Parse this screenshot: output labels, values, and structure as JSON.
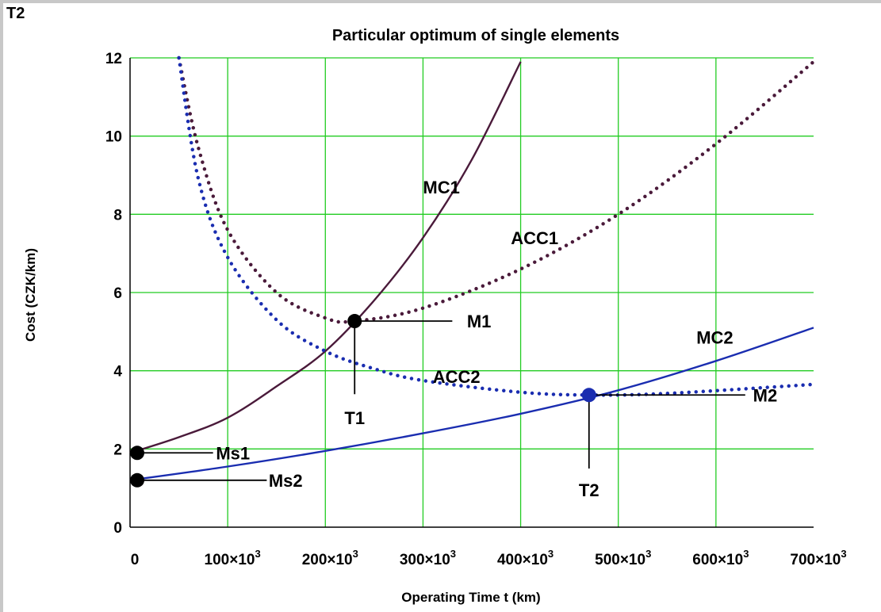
{
  "figure_tag": "T2",
  "chart_data": {
    "type": "line",
    "title": "Particular optimum of single elements",
    "xlabel": "Operating Time  t (km)",
    "ylabel": "Cost (CZK/km)",
    "xlim": [
      0,
      700000
    ],
    "ylim": [
      0,
      12
    ],
    "grid": true,
    "x_ticks": [
      {
        "value": 0,
        "base": "0",
        "exp": ""
      },
      {
        "value": 100000,
        "base": "100×10",
        "exp": "3"
      },
      {
        "value": 200000,
        "base": "200×10",
        "exp": "3"
      },
      {
        "value": 300000,
        "base": "300×10",
        "exp": "3"
      },
      {
        "value": 400000,
        "base": "400×10",
        "exp": "3"
      },
      {
        "value": 500000,
        "base": "500×10",
        "exp": "3"
      },
      {
        "value": 600000,
        "base": "600×10",
        "exp": "3"
      },
      {
        "value": 700000,
        "base": "700×10",
        "exp": "3"
      }
    ],
    "y_ticks": [
      0,
      2,
      4,
      6,
      8,
      10,
      12
    ],
    "series": [
      {
        "name": "MC1",
        "style": "solid",
        "color": "#4a1a3a",
        "x": [
          0,
          50000,
          100000,
          150000,
          200000,
          250000,
          300000,
          350000,
          400000
        ],
        "y": [
          1.9,
          2.3,
          2.8,
          3.6,
          4.5,
          5.8,
          7.4,
          9.4,
          11.9
        ]
      },
      {
        "name": "ACC1",
        "style": "dotted",
        "color": "#4a1a3a",
        "x": [
          50000,
          70000,
          100000,
          150000,
          200000,
          230000,
          300000,
          400000,
          500000,
          600000,
          700000
        ],
        "y": [
          12.0,
          9.7,
          7.6,
          6.0,
          5.35,
          5.27,
          5.6,
          6.6,
          8.0,
          9.8,
          11.9
        ]
      },
      {
        "name": "MC2",
        "style": "solid",
        "color": "#1a2db0",
        "x": [
          0,
          100000,
          200000,
          300000,
          400000,
          500000,
          600000,
          700000
        ],
        "y": [
          1.2,
          1.55,
          1.95,
          2.4,
          2.9,
          3.5,
          4.25,
          5.1
        ]
      },
      {
        "name": "ACC2",
        "style": "dotted",
        "color": "#1a2db0",
        "x": [
          50000,
          70000,
          100000,
          150000,
          200000,
          250000,
          300000,
          400000,
          470000,
          550000,
          700000
        ],
        "y": [
          12.0,
          8.9,
          6.9,
          5.3,
          4.5,
          4.05,
          3.75,
          3.45,
          3.38,
          3.42,
          3.65
        ]
      }
    ],
    "points": [
      {
        "label": "M1",
        "x": 230000,
        "y": 5.27,
        "color": "#000000"
      },
      {
        "label": "M2",
        "x": 470000,
        "y": 3.38,
        "color": "#1a2db0"
      },
      {
        "label": "Ms1",
        "x": 0,
        "y": 1.9,
        "color": "#000000"
      },
      {
        "label": "Ms2",
        "x": 0,
        "y": 1.2,
        "color": "#000000"
      }
    ],
    "annotations": [
      {
        "text": "MC1",
        "x": 300000,
        "y": 8.7
      },
      {
        "text": "ACC1",
        "x": 390000,
        "y": 7.4
      },
      {
        "text": "MC2",
        "x": 580000,
        "y": 4.85
      },
      {
        "text": "ACC2",
        "x": 310000,
        "y": 3.85
      },
      {
        "text": "M1",
        "x": 290000,
        "y": 5.27,
        "leader_from": [
          230000,
          5.27
        ],
        "leader_to": [
          330000,
          5.27
        ],
        "label_x": 345000
      },
      {
        "text": "M2",
        "x": 620000,
        "y": 3.38,
        "leader_from": [
          470000,
          3.38
        ],
        "leader_to": [
          630000,
          3.38
        ],
        "label_x": 638000
      },
      {
        "text": "T1",
        "x": 230000,
        "y": 3.2,
        "leader_from": [
          230000,
          5.27
        ],
        "leader_to": [
          230000,
          3.4
        ],
        "label_y": 2.8
      },
      {
        "text": "T2",
        "x": 470000,
        "y": 1.5,
        "leader_from": [
          470000,
          3.38
        ],
        "leader_to": [
          470000,
          1.5
        ],
        "label_y": 0.95
      },
      {
        "text": "Ms1",
        "x": 90000,
        "y": 1.9,
        "leader_from": [
          0,
          1.9
        ],
        "leader_to": [
          85000,
          1.9
        ],
        "label_x": 88000
      },
      {
        "text": "Ms2",
        "x": 140000,
        "y": 1.2,
        "leader_from": [
          0,
          1.2
        ],
        "leader_to": [
          140000,
          1.2
        ],
        "label_x": 142000
      }
    ]
  }
}
